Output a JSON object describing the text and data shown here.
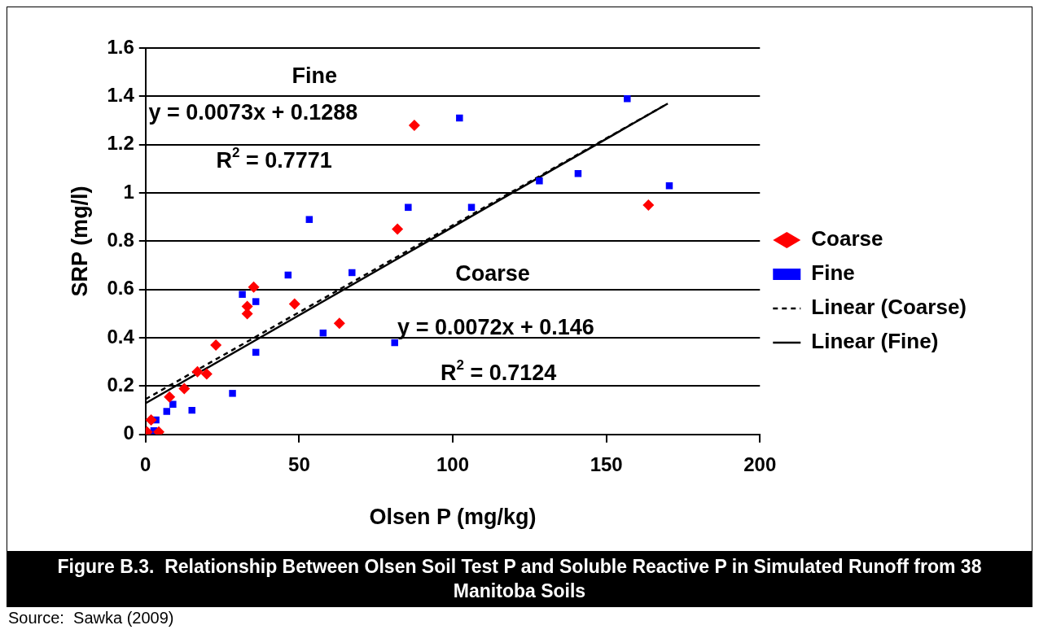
{
  "chart_data": {
    "type": "scatter",
    "title": "Figure B.3.  Relationship Between Olsen Soil Test P and Soluble Reactive P in Simulated Runoff from 38 Manitoba Soils",
    "xlabel": "Olsen P (mg/kg)",
    "ylabel": "SRP (mg/l)",
    "xlim": [
      0,
      200
    ],
    "xticks": [
      0,
      50,
      100,
      150,
      200
    ],
    "ylim": [
      0,
      1.6
    ],
    "yticks": [
      0,
      0.2,
      0.4,
      0.6,
      0.8,
      1,
      1.2,
      1.4,
      1.6
    ],
    "grid": "y",
    "legend": "right",
    "annotations": [
      "Fine",
      "y = 0.0073x + 0.1288",
      "R$^{2}$ = 0.7771",
      "Coarse",
      "y = 0.0072x + 0.146",
      "R$^{2}$ = 0.7124",
      "Source:  Sawka (2009)"
    ],
    "series": [
      {
        "name": "Coarse",
        "color": "#ff0000",
        "marker": "diamond",
        "x": [
          0.5,
          1.8,
          4.3,
          7.8,
          12.6,
          16.9,
          19.9,
          22.9,
          33.1,
          33.1,
          35.2,
          48.5,
          63.1,
          82,
          87.5,
          163.7
        ],
        "values": [
          0.01,
          0.06,
          0.01,
          0.155,
          0.19,
          0.26,
          0.25,
          0.37,
          0.5,
          0.53,
          0.61,
          0.54,
          0.46,
          0.85,
          1.28,
          0.95
        ]
      },
      {
        "name": "Fine",
        "color": "#0000ff",
        "marker": "square",
        "x": [
          2.7,
          3.4,
          6.9,
          8.9,
          15.1,
          28.3,
          31.5,
          35.9,
          35.9,
          46.4,
          53.3,
          57.8,
          67.2,
          81.1,
          85.5,
          102.2,
          106.1,
          128.2,
          140.8,
          156.8,
          170.5
        ],
        "values": [
          0.015,
          0.06,
          0.095,
          0.125,
          0.1,
          0.17,
          0.58,
          0.55,
          0.34,
          0.66,
          0.89,
          0.42,
          0.67,
          0.38,
          0.94,
          1.31,
          0.94,
          1.05,
          1.08,
          1.39,
          1.03
        ]
      },
      {
        "name": "Linear (Coarse)",
        "type": "line",
        "color": "#000000",
        "marker": "none",
        "line_style": "dashed",
        "x": [
          0,
          170
        ],
        "values": [
          0.146,
          1.37
        ]
      },
      {
        "name": "Linear (Fine)",
        "type": "line",
        "color": "#000000",
        "marker": "none",
        "line_style": "solid",
        "x": [
          0,
          170
        ],
        "values": [
          0.129,
          1.37
        ]
      }
    ]
  }
}
